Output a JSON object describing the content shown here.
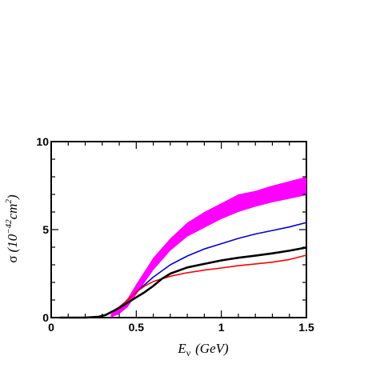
{
  "chart_data": {
    "type": "line",
    "title": "",
    "xlabel": "E",
    "xlabel_subscript": "ν",
    "xlabel_unit": "(GeV)",
    "ylabel_symbol": "σ",
    "ylabel_unit_open": "(10",
    "ylabel_unit_exp": "−42",
    "ylabel_unit_mid": "cm",
    "ylabel_unit_sq": "2",
    "ylabel_unit_close": ")",
    "xlim": [
      0,
      1.5
    ],
    "ylim": [
      0,
      10
    ],
    "xticks": [
      0,
      0.5,
      1,
      1.5
    ],
    "xtick_labels": [
      "0",
      "0.5",
      "1",
      "1.5"
    ],
    "yticks": [
      0,
      5,
      10
    ],
    "ytick_labels": [
      "0",
      "5",
      "10"
    ],
    "grid": false,
    "band": {
      "color": "#ff00ff",
      "x": [
        0.35,
        0.4,
        0.45,
        0.5,
        0.6,
        0.7,
        0.8,
        0.9,
        1.0,
        1.1,
        1.2,
        1.3,
        1.4,
        1.5
      ],
      "upper": [
        0.2,
        0.55,
        1.1,
        1.9,
        3.4,
        4.5,
        5.4,
        6.0,
        6.5,
        7.0,
        7.2,
        7.5,
        7.75,
        8.0
      ],
      "lower": [
        0.0,
        0.2,
        0.6,
        1.3,
        2.7,
        3.8,
        4.6,
        5.1,
        5.6,
        6.0,
        6.3,
        6.55,
        6.75,
        6.95
      ]
    },
    "series": [
      {
        "color": "#0000dd",
        "x": [
          0.05,
          0.2,
          0.28,
          0.32,
          0.36,
          0.4,
          0.45,
          0.5,
          0.6,
          0.7,
          0.8,
          0.9,
          1.0,
          1.1,
          1.2,
          1.3,
          1.4,
          1.5
        ],
        "y": [
          0.0,
          0.0,
          0.05,
          0.15,
          0.35,
          0.6,
          1.0,
          1.45,
          2.3,
          3.0,
          3.5,
          3.9,
          4.2,
          4.5,
          4.75,
          4.95,
          5.15,
          5.4
        ]
      },
      {
        "color": "#ff0000",
        "x": [
          0.05,
          0.2,
          0.28,
          0.32,
          0.36,
          0.4,
          0.45,
          0.5,
          0.55,
          0.6,
          0.7,
          0.8,
          0.9,
          1.0,
          1.1,
          1.2,
          1.3,
          1.4,
          1.5
        ],
        "y": [
          0.0,
          0.0,
          0.05,
          0.15,
          0.35,
          0.6,
          1.0,
          1.45,
          1.8,
          2.05,
          2.35,
          2.55,
          2.7,
          2.82,
          2.95,
          3.05,
          3.15,
          3.3,
          3.55
        ]
      },
      {
        "color": "#000000",
        "x": [
          0.05,
          0.2,
          0.28,
          0.32,
          0.36,
          0.4,
          0.45,
          0.5,
          0.55,
          0.6,
          0.65,
          0.7,
          0.8,
          0.9,
          1.0,
          1.1,
          1.2,
          1.3,
          1.4,
          1.5
        ],
        "y": [
          0.0,
          0.0,
          0.05,
          0.15,
          0.35,
          0.55,
          0.85,
          1.15,
          1.45,
          1.8,
          2.2,
          2.5,
          2.85,
          3.05,
          3.25,
          3.4,
          3.52,
          3.65,
          3.8,
          3.98
        ]
      }
    ]
  }
}
